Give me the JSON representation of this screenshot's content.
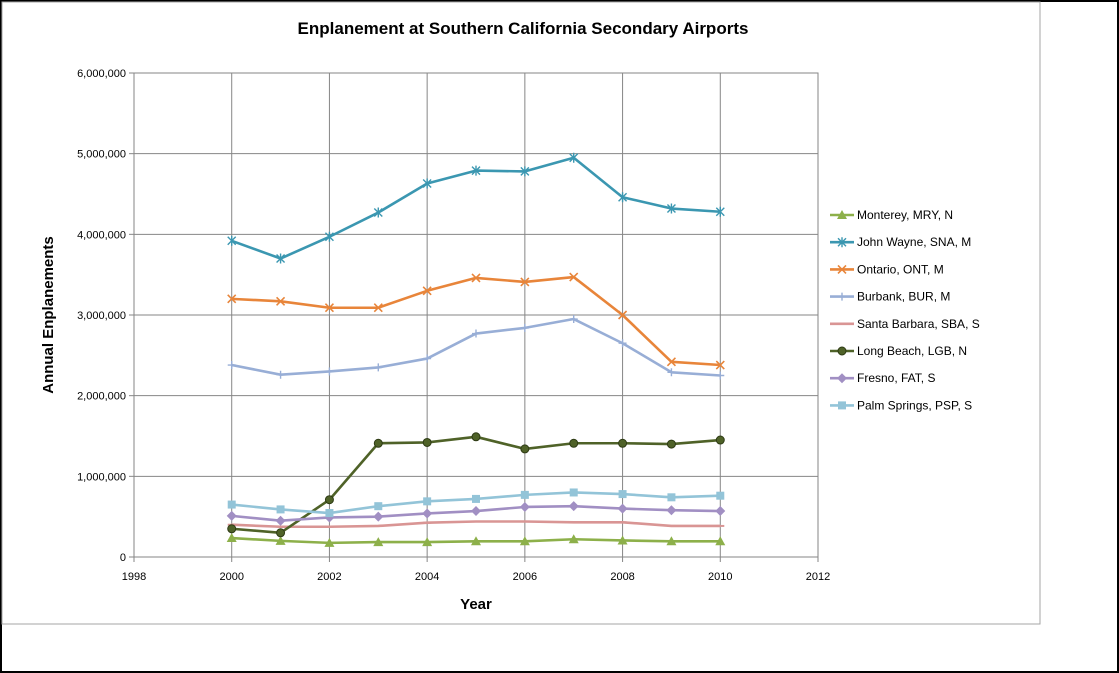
{
  "chart_data": {
    "type": "line",
    "title": "Enplanement at Southern California Secondary Airports",
    "xlabel": "Year",
    "ylabel": "Annual Enplanements",
    "xlim": [
      1998,
      2012
    ],
    "ylim": [
      0,
      6000000
    ],
    "x_ticks": [
      1998,
      2000,
      2002,
      2004,
      2006,
      2008,
      2010,
      2012
    ],
    "x_tick_labels": [
      "1998",
      "2000",
      "2002",
      "2004",
      "2006",
      "2008",
      "2010",
      "2012"
    ],
    "y_ticks": [
      0,
      1000000,
      2000000,
      3000000,
      4000000,
      5000000,
      6000000
    ],
    "y_tick_labels": [
      "0",
      "1,000,000",
      "2,000,000",
      "3,000,000",
      "4,000,000",
      "5,000,000",
      "6,000,000"
    ],
    "grid": true,
    "legend_position": "right",
    "x": [
      2000,
      2001,
      2002,
      2003,
      2004,
      2005,
      2006,
      2007,
      2008,
      2009,
      2010
    ],
    "series": [
      {
        "name": "Monterey, MRY, N",
        "color": "#8db04a",
        "marker": "triangle",
        "values": [
          235000,
          200000,
          175000,
          185000,
          185000,
          195000,
          195000,
          220000,
          205000,
          195000,
          195000
        ]
      },
      {
        "name": "John Wayne, SNA, M",
        "color": "#3b97b1",
        "marker": "star",
        "values": [
          3920000,
          3700000,
          3970000,
          4270000,
          4630000,
          4790000,
          4780000,
          4950000,
          4460000,
          4320000,
          4280000
        ]
      },
      {
        "name": "Ontario, ONT, M",
        "color": "#e8853a",
        "marker": "x",
        "values": [
          3200000,
          3170000,
          3090000,
          3090000,
          3300000,
          3460000,
          3410000,
          3470000,
          3000000,
          2420000,
          2380000
        ]
      },
      {
        "name": "Burbank, BUR, M",
        "color": "#98aed6",
        "marker": "plus",
        "values": [
          2380000,
          2260000,
          2300000,
          2350000,
          2460000,
          2770000,
          2840000,
          2950000,
          2650000,
          2290000,
          2250000
        ]
      },
      {
        "name": "Santa Barbara, SBA, S",
        "color": "#d99594",
        "marker": "dash",
        "values": [
          400000,
          375000,
          375000,
          385000,
          425000,
          440000,
          440000,
          430000,
          430000,
          385000,
          385000
        ]
      },
      {
        "name": "Long Beach, LGB, N",
        "color": "#4f6228",
        "marker": "circle",
        "values": [
          350000,
          300000,
          710000,
          1410000,
          1420000,
          1490000,
          1340000,
          1410000,
          1410000,
          1400000,
          1450000
        ]
      },
      {
        "name": "Fresno, FAT, S",
        "color": "#a18fc3",
        "marker": "diamond",
        "values": [
          510000,
          450000,
          490000,
          500000,
          540000,
          570000,
          620000,
          630000,
          600000,
          580000,
          570000
        ]
      },
      {
        "name": "Palm Springs, PSP, S",
        "color": "#93c4d8",
        "marker": "square",
        "values": [
          650000,
          590000,
          545000,
          630000,
          690000,
          720000,
          770000,
          800000,
          780000,
          740000,
          760000
        ]
      }
    ]
  }
}
